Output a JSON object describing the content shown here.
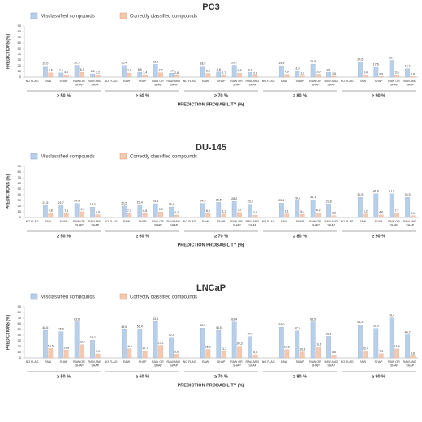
{
  "chart_data": [
    {
      "type": "bar",
      "title": "PC3",
      "y_label": "PREDICTIONS (%)",
      "x_label": "PREDICTION PROBABILITY (%)",
      "groups": [
        "≥ 50 %",
        "≥ 60 %",
        "≥ 70 %",
        "≥ 80 %",
        "≥ 90 %"
      ],
      "categories": [
        "NO FLAG",
        "RAW",
        "SHAP",
        "RAW OR SHAP",
        "RAW AND SHAP",
        "NO FLAG",
        "RAW",
        "SHAP",
        "RAW OR SHAP",
        "RAW AND SHAP",
        "NO FLAG",
        "RAW",
        "SHAP",
        "RAW OR SHAP",
        "RAW AND SHAP",
        "NO FLAG",
        "RAW",
        "SHAP",
        "RAW OR SHAP",
        "RAW AND SHAP",
        "NO FLAG",
        "RAW",
        "SHAP",
        "RAW OR SHAP",
        "RAW AND SHAP"
      ],
      "ylim": [
        0,
        90
      ],
      "yticks": [
        0,
        10,
        20,
        30,
        40,
        50,
        60,
        70,
        80,
        90
      ],
      "series": [
        {
          "name": "Misclassified compounds",
          "color": "#b8cfea",
          "values": [
            null,
            19.0,
            7.3,
            20.7,
            5.6,
            null,
            20.4,
            8.5,
            22.3,
            6.7,
            null,
            18.9,
            8.8,
            20.7,
            8.1,
            null,
            19.9,
            11.0,
            22.8,
            8.1,
            null,
            26.5,
            17.6,
            29.4,
            14.7
          ],
          "value_labels": [
            null,
            "19,0",
            "7,3",
            "20,7",
            "5,6",
            null,
            "20,4",
            "8,5",
            "22,3",
            "6,7",
            null,
            "18,9",
            "8,8",
            "20,7",
            "8,1",
            null,
            "19,9",
            "11,0",
            "22,8",
            "8,1",
            null,
            "26,5",
            "17,6",
            "29,4",
            "14,7"
          ]
        },
        {
          "name": "Correctly classified compounds",
          "color": "#f5c9b0",
          "values": [
            null,
            7.6,
            4.0,
            8.3,
            3.2,
            null,
            7.1,
            3.4,
            7.7,
            2.8,
            null,
            6.4,
            2.7,
            6.8,
            2.3,
            null,
            4.9,
            1.8,
            5.0,
            1.5,
            null,
            3.4,
            0.9,
            3.6,
            0.8
          ],
          "value_labels": [
            null,
            "7,6",
            "4,0",
            "8,3",
            "3,2",
            null,
            "7,1",
            "3,4",
            "7,7",
            "2,8",
            null,
            "6,4",
            "2,7",
            "6,8",
            "2,3",
            null,
            "4,9",
            "1,8",
            "5,0",
            "1,5",
            null,
            "3,4",
            "0,9",
            "3,6",
            "0,8"
          ]
        }
      ]
    },
    {
      "type": "bar",
      "title": "DU-145",
      "y_label": "PREDICTIONS (%)",
      "x_label": "PREDICTION PROBABILITY (%)",
      "groups": [
        "≥ 50 %",
        "≥ 60 %",
        "≥ 70 %",
        "≥ 80 %",
        "≥ 90 %"
      ],
      "categories": [
        "NO FLAG",
        "RAW",
        "SHAP",
        "RAW OR SHAP",
        "RAW AND SHAP",
        "NO FLAG",
        "RAW",
        "SHAP",
        "RAW OR SHAP",
        "RAW AND SHAP",
        "NO FLAG",
        "RAW",
        "SHAP",
        "RAW OR SHAP",
        "RAW AND SHAP",
        "NO FLAG",
        "RAW",
        "SHAP",
        "RAW OR SHAP",
        "RAW AND SHAP",
        "NO FLAG",
        "RAW",
        "SHAP",
        "RAW OR SHAP",
        "RAW AND SHAP"
      ],
      "ylim": [
        0,
        90
      ],
      "yticks": [
        0,
        10,
        20,
        30,
        40,
        50,
        60,
        70,
        80,
        90
      ],
      "series": [
        {
          "name": "Misclassified compounds",
          "color": "#b8cfea",
          "values": [
            null,
            21.5,
            21.7,
            24.9,
            18.3,
            null,
            20.5,
            22.4,
            24.3,
            18.6,
            null,
            24.9,
            26.5,
            28.2,
            23.3,
            null,
            25.4,
            29.5,
            31.1,
            23.8,
            null,
            35.5,
            41.9,
            41.9,
            35.5
          ],
          "value_labels": [
            null,
            "21,5",
            "21,7",
            "24,9",
            "18,3",
            null,
            "20,5",
            "22,4",
            "24,3",
            "18,6",
            null,
            "24,9",
            "26,5",
            "28,2",
            "23,3",
            null,
            "25,4",
            "29,5",
            "31,1",
            "23,8",
            null,
            "35,5",
            "41,9",
            "41,9",
            "35,5"
          ]
        },
        {
          "name": "Correctly classified compounds",
          "color": "#f5c9b0",
          "values": [
            null,
            7.8,
            7.1,
            10.2,
            4.9,
            null,
            7.3,
            6.8,
            9.8,
            4.3,
            null,
            6.9,
            6.1,
            9.1,
            3.9,
            null,
            6.1,
            5.4,
            8.2,
            3.3,
            null,
            6.2,
            4.6,
            7.7,
            3.1
          ],
          "value_labels": [
            null,
            "7,8",
            "7,1",
            "10,2",
            "4,9",
            null,
            "7,3",
            "6,8",
            "9,8",
            "4,3",
            null,
            "6,9",
            "6,1",
            "9,1",
            "3,9",
            null,
            "6,1",
            "5,4",
            "8,2",
            "3,3",
            null,
            "6,2",
            "4,6",
            "7,7",
            "3,1"
          ]
        }
      ]
    },
    {
      "type": "bar",
      "title": "LNCaP",
      "y_label": "PREDICTIONS (%)",
      "x_label": "PREDICTION PROBABILITY (%)",
      "groups": [
        "≥ 50 %",
        "≥ 60 %",
        "≥ 70 %",
        "≥ 80 %",
        "≥ 90 %"
      ],
      "categories": [
        "NO FLAG",
        "RAW",
        "SHAP",
        "RAW OR SHAP",
        "RAW AND SHAP",
        "NO FLAG",
        "RAW",
        "SHAP",
        "RAW OR SHAP",
        "RAW AND SHAP",
        "NO FLAG",
        "RAW",
        "SHAP",
        "RAW OR SHAP",
        "RAW AND SHAP",
        "NO FLAG",
        "RAW",
        "SHAP",
        "RAW OR SHAP",
        "RAW AND SHAP",
        "NO FLAG",
        "RAW",
        "SHAP",
        "RAW OR SHAP",
        "RAW AND SHAP"
      ],
      "ylim": [
        0,
        90
      ],
      "yticks": [
        0,
        10,
        20,
        30,
        40,
        50,
        60,
        70,
        80,
        90
      ],
      "series": [
        {
          "name": "Misclassified compounds",
          "color": "#b8cfea",
          "values": [
            null,
            48.6,
            46.2,
            63.6,
            31.2,
            null,
            49.6,
            50.4,
            63.9,
            36.1,
            null,
            52.5,
            48.5,
            63.4,
            37.6,
            null,
            54.0,
            47.6,
            63.5,
            38.1,
            null,
            58.3,
            51.9,
            70.4,
            40.7
          ],
          "value_labels": [
            null,
            "48,6",
            "46,2",
            "63,6",
            "31,2",
            null,
            "49,6",
            "50,4",
            "63,9",
            "36,1",
            null,
            "52,5",
            "48,5",
            "63,4",
            "37,6",
            null,
            "54,0",
            "47,6",
            "63,5",
            "38,1",
            null,
            "58,3",
            "51,9",
            "70,4",
            "40,7"
          ]
        },
        {
          "name": "Correctly classified compounds",
          "color": "#f5c9b0",
          "values": [
            null,
            16.5,
            13.8,
            23.2,
            7.1,
            null,
            16.0,
            12.7,
            22.1,
            6.6,
            null,
            15.0,
            11.3,
            20.3,
            5.8,
            null,
            14.8,
            10.5,
            19.1,
            5.5,
            null,
            12.4,
            7.3,
            15.9,
            3.8
          ],
          "value_labels": [
            null,
            "16,5",
            "13,8",
            "23,2",
            "7,1",
            null,
            "16,0",
            "12,7",
            "22,1",
            "6,6",
            null,
            "15,0",
            "11,3",
            "20,3",
            "5,8",
            null,
            "14,8",
            "10,5",
            "19,1",
            "5,5",
            null,
            "12,4",
            "7,3",
            "15,9",
            "3,8"
          ]
        }
      ]
    }
  ]
}
